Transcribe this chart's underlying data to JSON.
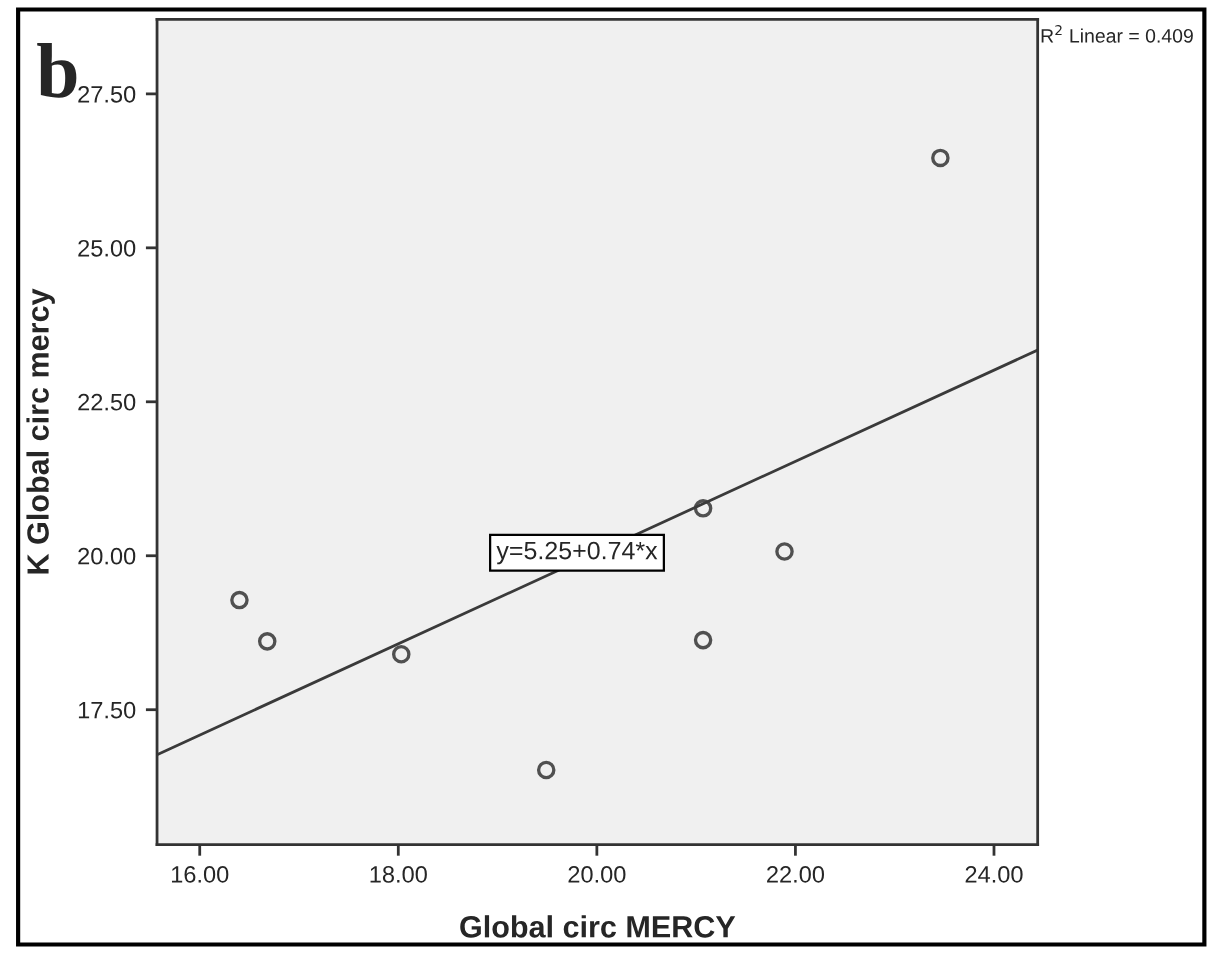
{
  "chart_data": {
    "type": "scatter",
    "xlabel": "Global circ MERCY",
    "ylabel": "K Global circ mercy",
    "annotations": [
      "b",
      "R$^{2}$ Linear = 0.409",
      {
        "text": "y=5.25+0.74*x",
        "x": 19.8,
        "y": 20.05
      }
    ],
    "series": [
      {
        "color": "#505050",
        "marker": "circle",
        "x": [
          16.4,
          16.68,
          18.03,
          19.49,
          21.07,
          21.07,
          21.89,
          23.46
        ],
        "values": [
          19.28,
          18.61,
          18.4,
          16.52,
          20.77,
          18.63,
          20.07,
          26.46
        ]
      },
      {
        "type": "line",
        "color": "#3a3a3a",
        "x": [
          15.57,
          24.44
        ],
        "values": [
          16.77,
          23.34
        ]
      }
    ],
    "xlim": [
      15.57,
      24.44
    ],
    "ylim": [
      15.31,
      28.71
    ],
    "xticks": [
      {
        "value": 16,
        "label": "16.00"
      },
      {
        "value": 18,
        "label": "18.00"
      },
      {
        "value": 20,
        "label": "20.00"
      },
      {
        "value": 22,
        "label": "22.00"
      },
      {
        "value": 24,
        "label": "24.00"
      }
    ],
    "yticks": [
      {
        "value": 17.5,
        "label": "17.50"
      },
      {
        "value": 20,
        "label": "20.00"
      },
      {
        "value": 22.5,
        "label": "22.50"
      },
      {
        "value": 25,
        "label": "25.00"
      },
      {
        "value": 27.5,
        "label": "27.50"
      }
    ],
    "grid": false,
    "legend": false
  }
}
